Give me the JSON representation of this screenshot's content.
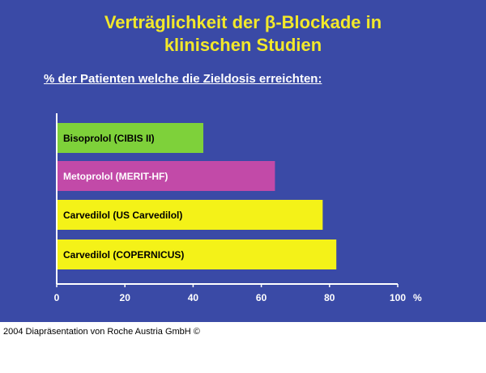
{
  "slide": {
    "title_line1": "Verträglichkeit der β-Blockade in",
    "title_line2": "klinischen Studien",
    "subtitle": "% der Patienten welche die Zieldosis erreichten:"
  },
  "footer": {
    "text": "2004 Diapräsentation von Roche Austria GmbH ©"
  },
  "chart_data": {
    "type": "bar",
    "orientation": "horizontal",
    "categories": [
      "Bisoprolol (CIBIS II)",
      "Metoprolol (MERIT-HF)",
      "Carvedilol (US Carvedilol)",
      "Carvedilol (COPERNICUS)"
    ],
    "values": [
      43,
      64,
      78,
      82
    ],
    "colors": [
      "#7ed13a",
      "#c24aa8",
      "#f4f218",
      "#f4f218"
    ],
    "label_colors": [
      "#000000",
      "#ffffff",
      "#000000",
      "#000000"
    ],
    "title": "",
    "xlabel": "%",
    "ylabel": "",
    "xlim": [
      0,
      100
    ],
    "xticks": [
      "0",
      "20",
      "40",
      "60",
      "80",
      "100"
    ],
    "grid": false,
    "legend": "none",
    "axis_color": "#ffffff",
    "tick_label_color": "#ffffff"
  }
}
